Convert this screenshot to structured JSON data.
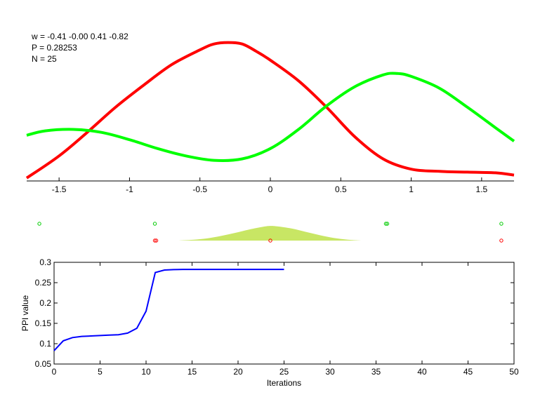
{
  "figure": {
    "annotations": {
      "w": "w = -0.41  -0.00  0.41  -0.82",
      "p": "P = 0.28253",
      "n": "N = 25"
    }
  },
  "chart_data": [
    {
      "type": "line",
      "title": "",
      "xlabel": "",
      "ylabel": "",
      "xlim": [
        -1.73,
        1.73
      ],
      "ylim": [
        0,
        1
      ],
      "x_ticks": [
        -1.5,
        -1,
        -0.5,
        0,
        0.5,
        1,
        1.5
      ],
      "x_tick_labels": [
        "-1.5",
        "-1",
        "-0.5",
        "0",
        "0.5",
        "1",
        "1.5"
      ],
      "y_axis_visible": false,
      "series": [
        {
          "color": "#ff0000",
          "x": [
            -1.73,
            -1.5,
            -1.3,
            -1.1,
            -0.9,
            -0.7,
            -0.5,
            -0.4,
            -0.3,
            -0.2,
            -0.1,
            0,
            0.2,
            0.4,
            0.6,
            0.8,
            1,
            1.2,
            1.4,
            1.6,
            1.73
          ],
          "y": [
            0.02,
            0.17,
            0.33,
            0.5,
            0.65,
            0.79,
            0.89,
            0.93,
            0.94,
            0.93,
            0.88,
            0.82,
            0.68,
            0.5,
            0.3,
            0.15,
            0.08,
            0.065,
            0.06,
            0.055,
            0.04
          ]
        },
        {
          "color": "#00ff00",
          "x": [
            -1.73,
            -1.6,
            -1.4,
            -1.2,
            -1.0,
            -0.8,
            -0.6,
            -0.4,
            -0.2,
            0,
            0.2,
            0.4,
            0.6,
            0.8,
            0.9,
            1.0,
            1.2,
            1.4,
            1.6,
            1.73
          ],
          "y": [
            0.31,
            0.34,
            0.35,
            0.33,
            0.28,
            0.22,
            0.17,
            0.14,
            0.15,
            0.22,
            0.35,
            0.51,
            0.64,
            0.72,
            0.73,
            0.71,
            0.63,
            0.5,
            0.36,
            0.27
          ]
        }
      ]
    },
    {
      "type": "scatter",
      "title": "",
      "xlim": [
        -1.73,
        1.73
      ],
      "axes_visible": false,
      "density": {
        "color": "#c8e664",
        "x": [
          -0.65,
          -0.55,
          -0.45,
          -0.35,
          -0.25,
          -0.15,
          -0.05,
          0,
          0.05,
          0.15,
          0.25,
          0.35,
          0.45,
          0.55,
          0.65
        ],
        "y": [
          0.0,
          0.05,
          0.14,
          0.3,
          0.5,
          0.72,
          0.9,
          0.95,
          0.92,
          0.78,
          0.57,
          0.35,
          0.17,
          0.06,
          0.0
        ]
      },
      "series": [
        {
          "color": "#00cc00",
          "row": "top",
          "x": [
            -1.64,
            -0.82,
            0.82,
            0.83,
            1.64
          ]
        },
        {
          "color": "#ff0000",
          "row": "bottom",
          "x": [
            -0.82,
            -0.81,
            0.0,
            1.64
          ]
        }
      ]
    },
    {
      "type": "line",
      "title": "",
      "xlabel": "Iterations",
      "ylabel": "PPI value",
      "xlim": [
        0,
        50
      ],
      "ylim": [
        0.05,
        0.3
      ],
      "x_ticks": [
        0,
        5,
        10,
        15,
        20,
        25,
        30,
        35,
        40,
        45,
        50
      ],
      "x_tick_labels": [
        "0",
        "5",
        "10",
        "15",
        "20",
        "25",
        "30",
        "35",
        "40",
        "45",
        "50"
      ],
      "y_ticks": [
        0.05,
        0.1,
        0.15,
        0.2,
        0.25,
        0.3
      ],
      "y_tick_labels": [
        "0.05",
        "0.1",
        "0.15",
        "0.2",
        "0.25",
        "0.3"
      ],
      "series": [
        {
          "color": "#0000ff",
          "x": [
            0,
            1,
            2,
            3,
            4,
            5,
            6,
            7,
            8,
            9,
            10,
            11,
            12,
            13,
            14,
            15,
            16,
            17,
            18,
            19,
            20,
            21,
            22,
            23,
            24,
            25
          ],
          "y": [
            0.083,
            0.107,
            0.115,
            0.118,
            0.119,
            0.12,
            0.121,
            0.122,
            0.126,
            0.138,
            0.18,
            0.275,
            0.281,
            0.282,
            0.2825,
            0.2825,
            0.2825,
            0.2825,
            0.2825,
            0.2825,
            0.2825,
            0.2825,
            0.2825,
            0.2825,
            0.2825,
            0.2825
          ]
        }
      ]
    }
  ]
}
